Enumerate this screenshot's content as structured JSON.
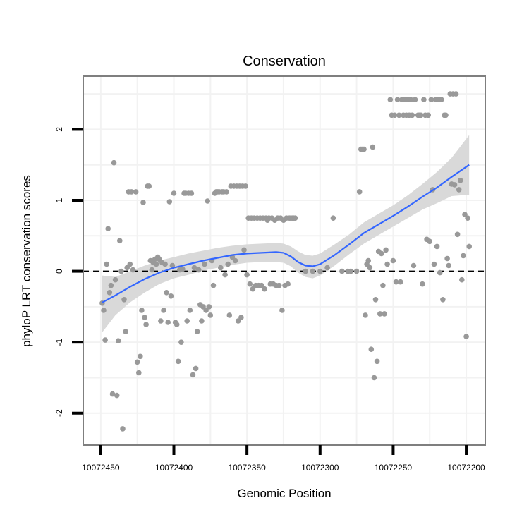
{
  "chart_data": {
    "type": "scatter",
    "title": "Conservation",
    "xlabel": "Genomic Position",
    "ylabel": "phyloP LRT conservation scores",
    "x_reversed": true,
    "xlim": [
      10072462,
      10072187
    ],
    "ylim": [
      -2.45,
      2.75
    ],
    "x_ticks": [
      10072450,
      10072400,
      10072350,
      10072300,
      10072250,
      10072200
    ],
    "x_tick_labels": [
      "10072450",
      "10072400",
      "10072350",
      "10072300",
      "10072250",
      "10072200"
    ],
    "y_ticks": [
      -2,
      -1,
      0,
      1,
      2
    ],
    "y_tick_labels": [
      "-2",
      "-1",
      "0",
      "1",
      "2"
    ],
    "reference_line": {
      "y": 0,
      "style": "dashed"
    },
    "grid": true,
    "colors": {
      "points": "#999999",
      "smooth": "#3366ff",
      "ribbon": "#d9d9d9",
      "panel_border": "#7f7f7f",
      "grid": "#f2f2f2"
    },
    "points": [
      [
        10072449,
        -0.45
      ],
      [
        10072448,
        -0.55
      ],
      [
        10072447,
        -0.97
      ],
      [
        10072446,
        0.1
      ],
      [
        10072445,
        0.6
      ],
      [
        10072444,
        -0.3
      ],
      [
        10072443,
        -0.2
      ],
      [
        10072442,
        -1.73
      ],
      [
        10072441,
        1.53
      ],
      [
        10072440,
        -0.12
      ],
      [
        10072439,
        -1.75
      ],
      [
        10072438,
        -0.98
      ],
      [
        10072437,
        0.43
      ],
      [
        10072436,
        0.0
      ],
      [
        10072435,
        -2.22
      ],
      [
        10072434,
        -0.4
      ],
      [
        10072433,
        -0.85
      ],
      [
        10072432,
        0.05
      ],
      [
        10072431,
        1.12
      ],
      [
        10072430,
        0.1
      ],
      [
        10072429,
        1.12
      ],
      [
        10072428,
        0.02
      ],
      [
        10072426,
        1.12
      ],
      [
        10072425,
        -1.28
      ],
      [
        10072424,
        -1.43
      ],
      [
        10072423,
        -1.2
      ],
      [
        10072422,
        -0.55
      ],
      [
        10072421,
        0.97
      ],
      [
        10072420,
        -0.65
      ],
      [
        10072419,
        -0.75
      ],
      [
        10072418,
        1.2
      ],
      [
        10072417,
        1.2
      ],
      [
        10072416,
        0.15
      ],
      [
        10072415,
        0.02
      ],
      [
        10072414,
        0.12
      ],
      [
        10072413,
        0.17
      ],
      [
        10072412,
        0.1
      ],
      [
        10072411,
        0.2
      ],
      [
        10072410,
        0.17
      ],
      [
        10072409,
        -0.7
      ],
      [
        10072408,
        0.12
      ],
      [
        10072407,
        -0.55
      ],
      [
        10072406,
        0.1
      ],
      [
        10072405,
        -0.3
      ],
      [
        10072404,
        -0.72
      ],
      [
        10072403,
        0.98
      ],
      [
        10072402,
        -0.35
      ],
      [
        10072401,
        0.08
      ],
      [
        10072400,
        1.1
      ],
      [
        10072399,
        -0.72
      ],
      [
        10072398,
        -0.75
      ],
      [
        10072397,
        -1.27
      ],
      [
        10072396,
        0.02
      ],
      [
        10072395,
        -1.0
      ],
      [
        10072394,
        0.03
      ],
      [
        10072393,
        1.1
      ],
      [
        10072392,
        1.1
      ],
      [
        10072391,
        -0.7
      ],
      [
        10072390,
        1.1
      ],
      [
        10072389,
        -0.55
      ],
      [
        10072388,
        1.1
      ],
      [
        10072387,
        -1.46
      ],
      [
        10072386,
        0.05
      ],
      [
        10072385,
        -1.37
      ],
      [
        10072384,
        -0.85
      ],
      [
        10072383,
        0.02
      ],
      [
        10072382,
        -0.47
      ],
      [
        10072381,
        -0.7
      ],
      [
        10072380,
        -0.5
      ],
      [
        10072379,
        0.1
      ],
      [
        10072378,
        -0.55
      ],
      [
        10072377,
        0.99
      ],
      [
        10072376,
        -0.5
      ],
      [
        10072375,
        -0.62
      ],
      [
        10072374,
        0.15
      ],
      [
        10072373,
        -0.2
      ],
      [
        10072372,
        1.1
      ],
      [
        10072371,
        1.12
      ],
      [
        10072370,
        1.12
      ],
      [
        10072369,
        1.12
      ],
      [
        10072368,
        0.05
      ],
      [
        10072367,
        1.12
      ],
      [
        10072366,
        1.12
      ],
      [
        10072365,
        -0.05
      ],
      [
        10072364,
        1.12
      ],
      [
        10072363,
        0.1
      ],
      [
        10072362,
        -0.62
      ],
      [
        10072361,
        1.2
      ],
      [
        10072360,
        0.2
      ],
      [
        10072359,
        1.2
      ],
      [
        10072358,
        0.15
      ],
      [
        10072357,
        1.2
      ],
      [
        10072356,
        -0.7
      ],
      [
        10072355,
        1.2
      ],
      [
        10072354,
        -0.65
      ],
      [
        10072353,
        1.2
      ],
      [
        10072352,
        0.3
      ],
      [
        10072351,
        1.2
      ],
      [
        10072350,
        -0.05
      ],
      [
        10072349,
        0.75
      ],
      [
        10072348,
        -0.18
      ],
      [
        10072347,
        0.75
      ],
      [
        10072346,
        -0.25
      ],
      [
        10072345,
        0.75
      ],
      [
        10072344,
        -0.2
      ],
      [
        10072343,
        0.75
      ],
      [
        10072342,
        -0.2
      ],
      [
        10072341,
        0.75
      ],
      [
        10072340,
        -0.2
      ],
      [
        10072339,
        0.75
      ],
      [
        10072338,
        -0.25
      ],
      [
        10072337,
        0.75
      ],
      [
        10072336,
        0.72
      ],
      [
        10072335,
        0.75
      ],
      [
        10072334,
        -0.18
      ],
      [
        10072333,
        0.75
      ],
      [
        10072332,
        -0.18
      ],
      [
        10072331,
        0.72
      ],
      [
        10072330,
        -0.2
      ],
      [
        10072329,
        0.75
      ],
      [
        10072328,
        -0.2
      ],
      [
        10072327,
        0.75
      ],
      [
        10072326,
        -0.55
      ],
      [
        10072325,
        0.72
      ],
      [
        10072324,
        -0.2
      ],
      [
        10072323,
        0.75
      ],
      [
        10072322,
        -0.18
      ],
      [
        10072321,
        0.75
      ],
      [
        10072320,
        0.75
      ],
      [
        10072319,
        0.75
      ],
      [
        10072318,
        0.75
      ],
      [
        10072317,
        0.75
      ],
      [
        10072310,
        0.0
      ],
      [
        10072305,
        0.0
      ],
      [
        10072300,
        0.0
      ],
      [
        10072295,
        0.05
      ],
      [
        10072291,
        0.75
      ],
      [
        10072285,
        0.0
      ],
      [
        10072281,
        0.0
      ],
      [
        10072279,
        0.0
      ],
      [
        10072275,
        0.0
      ],
      [
        10072273,
        1.12
      ],
      [
        10072272,
        1.72
      ],
      [
        10072271,
        1.72
      ],
      [
        10072270,
        1.72
      ],
      [
        10072269,
        -0.62
      ],
      [
        10072268,
        0.1
      ],
      [
        10072267,
        0.15
      ],
      [
        10072266,
        0.05
      ],
      [
        10072265,
        -1.1
      ],
      [
        10072264,
        1.75
      ],
      [
        10072263,
        -1.5
      ],
      [
        10072262,
        -0.4
      ],
      [
        10072261,
        -1.27
      ],
      [
        10072260,
        0.28
      ],
      [
        10072259,
        -0.6
      ],
      [
        10072258,
        0.25
      ],
      [
        10072257,
        -0.2
      ],
      [
        10072256,
        -0.6
      ],
      [
        10072255,
        0.3
      ],
      [
        10072254,
        0.1
      ],
      [
        10072252,
        2.42
      ],
      [
        10072251,
        2.2
      ],
      [
        10072250,
        0.15
      ],
      [
        10072249,
        2.2
      ],
      [
        10072248,
        -0.15
      ],
      [
        10072247,
        2.42
      ],
      [
        10072246,
        2.2
      ],
      [
        10072245,
        -0.15
      ],
      [
        10072244,
        2.42
      ],
      [
        10072243,
        2.2
      ],
      [
        10072242,
        2.42
      ],
      [
        10072241,
        2.2
      ],
      [
        10072240,
        2.42
      ],
      [
        10072239,
        2.2
      ],
      [
        10072238,
        2.42
      ],
      [
        10072237,
        2.2
      ],
      [
        10072236,
        0.08
      ],
      [
        10072235,
        2.42
      ],
      [
        10072233,
        2.2
      ],
      [
        10072232,
        2.2
      ],
      [
        10072231,
        2.2
      ],
      [
        10072230,
        -0.18
      ],
      [
        10072229,
        2.42
      ],
      [
        10072228,
        2.2
      ],
      [
        10072227,
        0.45
      ],
      [
        10072226,
        2.2
      ],
      [
        10072225,
        0.42
      ],
      [
        10072224,
        2.42
      ],
      [
        10072223,
        1.15
      ],
      [
        10072222,
        0.1
      ],
      [
        10072221,
        2.42
      ],
      [
        10072220,
        0.35
      ],
      [
        10072219,
        2.42
      ],
      [
        10072218,
        -0.02
      ],
      [
        10072217,
        2.42
      ],
      [
        10072216,
        -0.4
      ],
      [
        10072215,
        2.2
      ],
      [
        10072214,
        2.2
      ],
      [
        10072213,
        0.18
      ],
      [
        10072212,
        0.08
      ],
      [
        10072211,
        2.5
      ],
      [
        10072210,
        1.23
      ],
      [
        10072209,
        2.5
      ],
      [
        10072208,
        1.22
      ],
      [
        10072207,
        2.5
      ],
      [
        10072206,
        0.52
      ],
      [
        10072205,
        1.15
      ],
      [
        10072204,
        1.28
      ],
      [
        10072203,
        -0.12
      ],
      [
        10072202,
        0.22
      ],
      [
        10072201,
        0.8
      ],
      [
        10072200,
        -0.92
      ],
      [
        10072199,
        0.75
      ],
      [
        10072198,
        0.35
      ]
    ],
    "smooth": [
      [
        10072449,
        -0.44
      ],
      [
        10072440,
        -0.34
      ],
      [
        10072430,
        -0.22
      ],
      [
        10072420,
        -0.11
      ],
      [
        10072410,
        -0.02
      ],
      [
        10072400,
        0.05
      ],
      [
        10072390,
        0.1
      ],
      [
        10072380,
        0.15
      ],
      [
        10072370,
        0.19
      ],
      [
        10072360,
        0.23
      ],
      [
        10072350,
        0.25
      ],
      [
        10072340,
        0.26
      ],
      [
        10072330,
        0.27
      ],
      [
        10072325,
        0.26
      ],
      [
        10072320,
        0.21
      ],
      [
        10072315,
        0.13
      ],
      [
        10072310,
        0.08
      ],
      [
        10072305,
        0.07
      ],
      [
        10072300,
        0.1
      ],
      [
        10072290,
        0.23
      ],
      [
        10072280,
        0.38
      ],
      [
        10072270,
        0.54
      ],
      [
        10072260,
        0.66
      ],
      [
        10072250,
        0.78
      ],
      [
        10072240,
        0.91
      ],
      [
        10072230,
        1.05
      ],
      [
        10072220,
        1.18
      ],
      [
        10072210,
        1.33
      ],
      [
        10072198,
        1.5
      ]
    ],
    "ribbon": [
      [
        10072449,
        -0.06,
        -0.86
      ],
      [
        10072440,
        -0.08,
        -0.62
      ],
      [
        10072430,
        0.0,
        -0.44
      ],
      [
        10072420,
        0.08,
        -0.3
      ],
      [
        10072410,
        0.15,
        -0.18
      ],
      [
        10072400,
        0.2,
        -0.1
      ],
      [
        10072390,
        0.25,
        -0.05
      ],
      [
        10072380,
        0.29,
        0.01
      ],
      [
        10072370,
        0.33,
        0.05
      ],
      [
        10072360,
        0.36,
        0.09
      ],
      [
        10072350,
        0.38,
        0.12
      ],
      [
        10072340,
        0.39,
        0.13
      ],
      [
        10072330,
        0.4,
        0.13
      ],
      [
        10072325,
        0.39,
        0.12
      ],
      [
        10072320,
        0.35,
        0.07
      ],
      [
        10072315,
        0.28,
        -0.02
      ],
      [
        10072310,
        0.23,
        -0.08
      ],
      [
        10072305,
        0.22,
        -0.1
      ],
      [
        10072300,
        0.25,
        -0.06
      ],
      [
        10072290,
        0.38,
        0.08
      ],
      [
        10072280,
        0.52,
        0.24
      ],
      [
        10072270,
        0.69,
        0.39
      ],
      [
        10072260,
        0.81,
        0.51
      ],
      [
        10072250,
        0.93,
        0.63
      ],
      [
        10072240,
        1.07,
        0.75
      ],
      [
        10072230,
        1.23,
        0.87
      ],
      [
        10072220,
        1.4,
        0.96
      ],
      [
        10072210,
        1.6,
        1.06
      ],
      [
        10072198,
        1.92,
        1.08
      ]
    ]
  }
}
